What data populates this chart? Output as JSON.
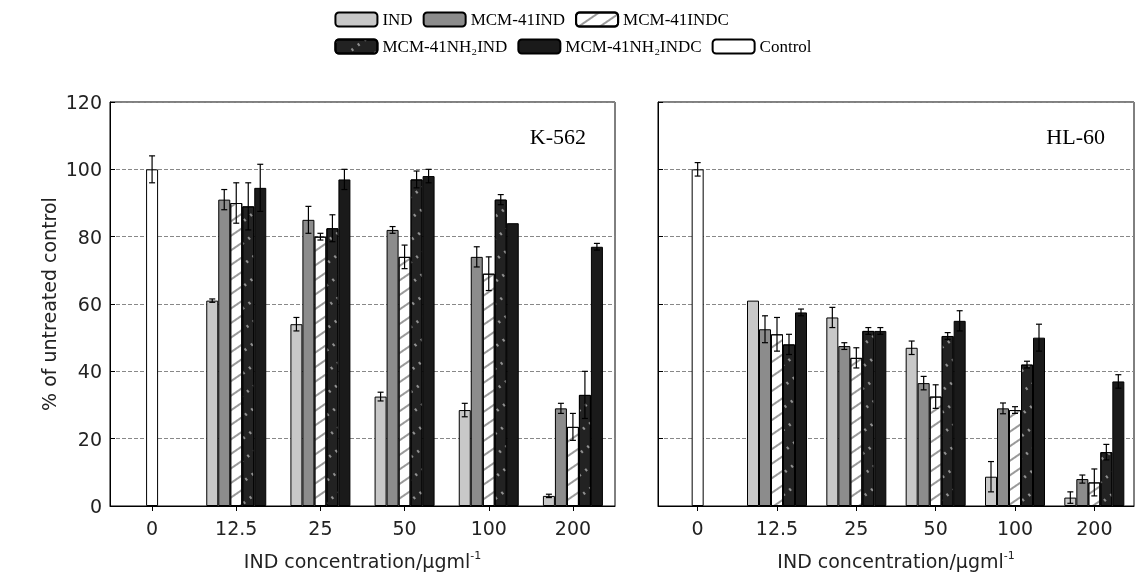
{
  "chart_data": [
    {
      "type": "bar",
      "title": "K-562",
      "xlabel": "IND concentration/μgml$^{-1}$",
      "ylabel": "% of untreated control",
      "categories": [
        "0",
        "12.5",
        "25",
        "50",
        "100",
        "200"
      ],
      "series": [
        {
          "name": "IND",
          "color": "#c8c8c8",
          "values": [
            null,
            61,
            54,
            32.5,
            28.5,
            3
          ],
          "errors": [
            null,
            0.5,
            2,
            1.3,
            2,
            0.5
          ]
        },
        {
          "name": "MCM-41IND",
          "color": "#8c8c8c",
          "values": [
            null,
            91,
            85,
            82,
            74,
            29
          ],
          "errors": [
            null,
            3,
            4,
            1,
            3,
            1.5
          ]
        },
        {
          "name": "MCM-41INDC",
          "color": "#ffffff",
          "values": [
            null,
            90,
            80,
            74,
            69,
            23.5
          ],
          "errors": [
            null,
            6,
            1,
            3.5,
            5,
            4
          ]
        },
        {
          "name": "MCM-41NH₂IND",
          "color": "#222222",
          "values": [
            null,
            89,
            82.5,
            97,
            91,
            33
          ],
          "errors": [
            null,
            7,
            4,
            2.5,
            1.5,
            7
          ]
        },
        {
          "name": "MCM-41NH₂INDC",
          "color": "#1a1a1a",
          "values": [
            null,
            94.5,
            97,
            98,
            84,
            77
          ],
          "errors": [
            null,
            7,
            3,
            2,
            null,
            1
          ]
        },
        {
          "name": "Control",
          "color": "#ffffff",
          "values": [
            100,
            null,
            null,
            null,
            null,
            null
          ],
          "errors": [
            4,
            null,
            null,
            null,
            null,
            null
          ]
        }
      ],
      "ylim": [
        0,
        120
      ],
      "yticks": [
        0,
        20,
        40,
        60,
        80,
        100,
        120
      ],
      "grid": "y",
      "legend": "top"
    },
    {
      "type": "bar",
      "title": "HL-60",
      "xlabel": "IND concentration/μgml$^{-1}$",
      "categories": [
        "0",
        "12.5",
        "25",
        "50",
        "100",
        "200"
      ],
      "series": [
        {
          "color": "#c8c8c8",
          "values": [
            null,
            61,
            56,
            47,
            8.7,
            2.5
          ],
          "errors": [
            null,
            null,
            3,
            2,
            4.5,
            1.7
          ]
        },
        {
          "color": "#8c8c8c",
          "values": [
            null,
            52.5,
            47.5,
            36.5,
            29,
            8
          ],
          "errors": [
            null,
            4,
            1,
            2,
            1.6,
            1.2
          ]
        },
        {
          "color": "#ffffff",
          "values": [
            null,
            51,
            44,
            32.5,
            28.5,
            7
          ],
          "errors": [
            null,
            5,
            3,
            3.5,
            1,
            4
          ]
        },
        {
          "color": "#222222",
          "values": [
            null,
            48,
            52,
            50.5,
            42,
            16
          ],
          "errors": [
            null,
            3,
            1,
            1,
            1,
            2.3
          ]
        },
        {
          "color": "#1a1a1a",
          "values": [
            null,
            57.5,
            52,
            55,
            50,
            37
          ],
          "errors": [
            null,
            1,
            1,
            3,
            4,
            2
          ]
        },
        {
          "color": "#ffffff",
          "values": [
            100,
            null,
            null,
            null,
            null,
            null
          ],
          "errors": [
            2,
            null,
            null,
            null,
            null,
            null
          ]
        }
      ],
      "ylim": [
        0,
        120
      ],
      "yticks": [
        0,
        20,
        40,
        60,
        80,
        100,
        120
      ],
      "grid": "y",
      "tick_labels": "x"
    }
  ]
}
